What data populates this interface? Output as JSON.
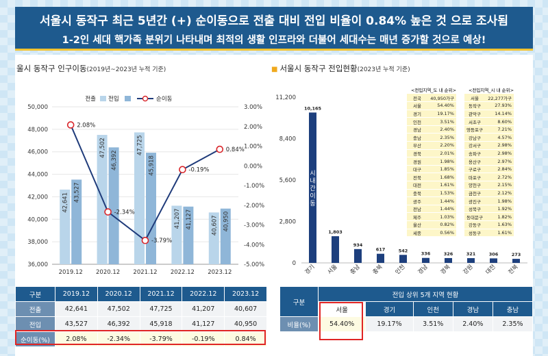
{
  "banner": {
    "title": "서울시 동작구 최근 5년간 (+) 순이동으로 전출 대비 전입 비율이 0.84% 높은 것 으로 조사됨",
    "subtitle": "1-2인 세대 핵가족 분위기 나타내며 최적의 생활 인프라와 더불어 세대수는 매년 증가할 것으로 예상!"
  },
  "left_title": {
    "main": "울시 동작구 인구이동",
    "sub": "(2019년~2023년 누적 기준)"
  },
  "right_title": {
    "main": "서울시 동작구 전입현황",
    "sub": "(2023년 누적 기준)"
  },
  "colors": {
    "out_bar": "#b9d5ea",
    "in_bar": "#8fb6d8",
    "net_line": "#1f3b7a",
    "net_marker": "#d9262b",
    "bar_dark": "#1d3f7d",
    "header": "#1e5a8e"
  },
  "chart_data": [
    {
      "type": "bar",
      "categories": [
        "2019.12",
        "2020.12",
        "2021.12",
        "2022.12",
        "2023.12"
      ],
      "series": [
        {
          "name": "전출",
          "values": [
            42641,
            47502,
            47725,
            41207,
            40607
          ]
        },
        {
          "name": "전입",
          "values": [
            43527,
            46392,
            45918,
            41127,
            40950
          ]
        },
        {
          "name": "순이동",
          "type": "line",
          "axis": "right",
          "values": [
            2.08,
            -2.34,
            -3.79,
            -0.19,
            0.84
          ]
        }
      ],
      "bar_labels": [
        [
          "42,641",
          "43,527"
        ],
        [
          "47,502",
          "46,392"
        ],
        [
          "47,725",
          "45,918"
        ],
        [
          "41,207",
          "41,127"
        ],
        [
          "40,607",
          "40,950"
        ]
      ],
      "line_labels": [
        "2.08%",
        "-2.34%",
        "-3.79%",
        "-0.19%",
        "0.84%"
      ],
      "ylim": [
        36000,
        50000
      ],
      "yticks": [
        "36,000",
        "38,000",
        "40,000",
        "42,000",
        "44,000",
        "46,000",
        "48,000",
        "50,000"
      ],
      "y2lim": [
        -5,
        3
      ],
      "y2ticks": [
        "-5.00%",
        "-4.00%",
        "-3.00%",
        "-2.00%",
        "-1.00%",
        "0.00%",
        "1.00%",
        "2.00%",
        "3.00%"
      ],
      "legend": [
        "전출",
        "전입",
        "순이동"
      ],
      "legend_position": "top"
    },
    {
      "type": "bar",
      "categories": [
        "경기",
        "서울",
        "충남",
        "충북",
        "인천",
        "경남",
        "경북",
        "강원",
        "대전",
        "전북"
      ],
      "values": [
        10165,
        1803,
        934,
        617,
        542,
        336,
        326,
        321,
        306,
        273
      ],
      "value_labels": [
        "10,165",
        "1,803",
        "934",
        "617",
        "542",
        "336",
        "326",
        "321",
        "306",
        "273"
      ],
      "ylim": [
        0,
        11200
      ],
      "yticks": [
        "0",
        "2,800",
        "5,600",
        "8,400",
        "11,200"
      ],
      "annotation": "시내간이동"
    }
  ],
  "region_table_do": {
    "title": "<전입지역_도 내 순위>",
    "rows": [
      [
        "전국",
        "40,950가구"
      ],
      [
        "서울",
        "54.40%"
      ],
      [
        "경기",
        "19.17%"
      ],
      [
        "인천",
        "3.51%"
      ],
      [
        "경남",
        "2.40%"
      ],
      [
        "충남",
        "2.35%"
      ],
      [
        "부산",
        "2.20%"
      ],
      [
        "경북",
        "2.01%"
      ],
      [
        "경원",
        "1.98%"
      ],
      [
        "대구",
        "1.85%"
      ],
      [
        "전북",
        "1.68%"
      ],
      [
        "대전",
        "1.61%"
      ],
      [
        "충북",
        "1.53%"
      ],
      [
        "광주",
        "1.44%"
      ],
      [
        "전남",
        "1.44%"
      ],
      [
        "제주",
        "1.03%"
      ],
      [
        "울산",
        "0.82%"
      ],
      [
        "세종",
        "0.56%"
      ]
    ]
  },
  "region_table_si": {
    "title": "<전입지역_시 내 순위>",
    "rows": [
      [
        "서울",
        "22,277가구"
      ],
      [
        "동작구",
        "27.93%"
      ],
      [
        "관악구",
        "14.14%"
      ],
      [
        "서초구",
        "8.60%"
      ],
      [
        "영등포구",
        "7.21%"
      ],
      [
        "강남구",
        "4.57%"
      ],
      [
        "강서구",
        "2.98%"
      ],
      [
        "송파구",
        "2.98%"
      ],
      [
        "용산구",
        "2.97%"
      ],
      [
        "구로구",
        "2.84%"
      ],
      [
        "마포구",
        "2.72%"
      ],
      [
        "양천구",
        "2.15%"
      ],
      [
        "금천구",
        "2.12%"
      ],
      [
        "광진구",
        "1.98%"
      ],
      [
        "성북구",
        "1.92%"
      ],
      [
        "동대문구",
        "1.82%"
      ],
      [
        "강동구",
        "1.63%"
      ],
      [
        "성동구",
        "1.61%"
      ]
    ]
  },
  "left_table": {
    "header": [
      "구분",
      "2019.12",
      "2020.12",
      "2021.12",
      "2022.12",
      "2023.12"
    ],
    "rows": [
      {
        "label": "전출",
        "values": [
          "42,641",
          "47,502",
          "47,725",
          "41,207",
          "40,607"
        ]
      },
      {
        "label": "전입",
        "values": [
          "43,527",
          "46,392",
          "45,918",
          "41,127",
          "40,950"
        ]
      },
      {
        "label": "순이동(%)",
        "values": [
          "2.08%",
          "-2.34%",
          "-3.79%",
          "-0.19%",
          "0.84%"
        ]
      }
    ]
  },
  "right_table": {
    "corner": "구분",
    "group_title": "전입 상위 5개 지역 현황",
    "regions": [
      "서울",
      "경기",
      "인천",
      "경남",
      "충남"
    ],
    "row_label": "비율(%)",
    "values": [
      "54.40%",
      "19.17%",
      "3.51%",
      "2.40%",
      "2.35%"
    ]
  }
}
